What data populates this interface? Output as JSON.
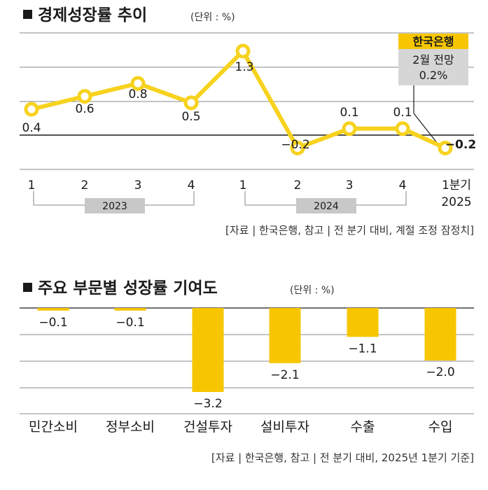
{
  "colors": {
    "accent": "#F7C600",
    "line": "#F7D21E",
    "grid": "#8A8A8A",
    "zero": "#1A1A1A",
    "note_box": "#D6D6D6",
    "year_box": "#C8C8C8",
    "bracket": "#A0A0A0"
  },
  "chart1": {
    "title": "경제성장률 추이",
    "unit": "(단위 : %)",
    "source": "[자료 | 한국은행, 참고 | 전 분기 대비, 계절 조정 잠정치]",
    "forecast_note": {
      "org": "한국은행",
      "line1": "2월 전망",
      "line2": "0.2%"
    }
  },
  "chart2": {
    "title": "주요 부문별 성장률 기여도",
    "unit": "(단위 : %)",
    "source": "[자료 | 한국은행, 참고 | 전 분기 대비, 2025년 1분기 기준]"
  },
  "chart_data": [
    {
      "type": "line",
      "title": "경제성장률 추이",
      "unit": "%",
      "categories": [
        "1",
        "2",
        "3",
        "4",
        "1",
        "2",
        "3",
        "4",
        "1분기 2025"
      ],
      "year_groups": [
        {
          "label": "2023",
          "quarters": [
            "1",
            "2",
            "3",
            "4"
          ]
        },
        {
          "label": "2024",
          "quarters": [
            "1",
            "2",
            "3",
            "4"
          ]
        }
      ],
      "series": [
        {
          "values": [
            0.4,
            0.6,
            0.8,
            0.5,
            1.3,
            -0.2,
            0.1,
            0.1,
            -0.2
          ]
        }
      ],
      "data_labels": [
        "0.4",
        "0.6",
        "0.8",
        "0.5",
        "1.3",
        "−0.2",
        "0.1",
        "0.1",
        "−0.2"
      ],
      "ylim": [
        -0.45,
        1.5
      ],
      "grid": true
    },
    {
      "type": "bar",
      "title": "주요 부문별 성장률 기여도",
      "unit": "%",
      "categories": [
        "민간소비",
        "정부소비",
        "건설투자",
        "설비투자",
        "수출",
        "수입"
      ],
      "values": [
        -0.1,
        -0.1,
        -3.2,
        -2.1,
        -1.1,
        -2.0
      ],
      "data_labels": [
        "−0.1",
        "−0.1",
        "−3.2",
        "−2.1",
        "−1.1",
        "−2.0"
      ],
      "ylim": [
        -3.5,
        0
      ],
      "grid": true
    }
  ]
}
